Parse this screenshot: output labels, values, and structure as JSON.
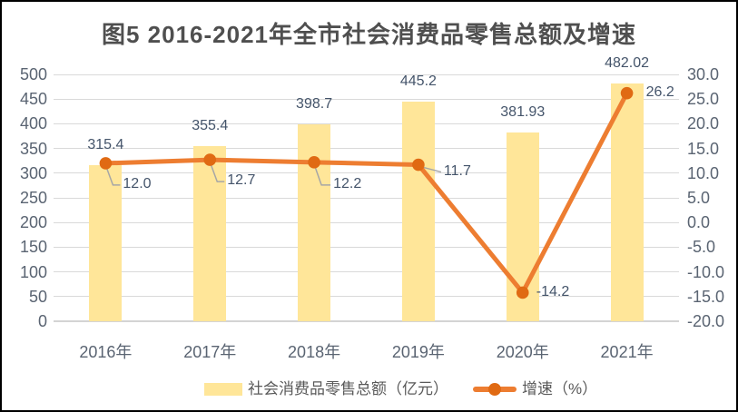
{
  "title": "图5 2016-2021年全市社会消费品零售总额及增速",
  "colors": {
    "bar_fill": "#FFE699",
    "line_stroke": "#ED7D31",
    "marker_fill": "#E06A13",
    "gridline": "#D9D9D9",
    "axis_text": "#5A6472",
    "data_label_text": "#44546A",
    "leader_line": "#A6A6A6",
    "title_text": "#4F4F4F"
  },
  "chart_data": {
    "type": "bar",
    "subtype": "bar-line-combo",
    "title": "图5 2016-2021年全市社会消费品零售总额及增速",
    "categories": [
      "2016年",
      "2017年",
      "2018年",
      "2019年",
      "2020年",
      "2021年"
    ],
    "series": [
      {
        "name": "社会消费品零售总额（亿元）",
        "type": "bar",
        "axis": "left",
        "values": [
          315.4,
          355.4,
          398.7,
          445.2,
          381.93,
          482.02
        ],
        "labels": [
          "315.4",
          "355.4",
          "398.7",
          "445.2",
          "381.93",
          "482.02"
        ]
      },
      {
        "name": "增速（%）",
        "type": "line",
        "axis": "right",
        "values": [
          12.0,
          12.7,
          12.2,
          11.7,
          -14.2,
          26.2
        ],
        "labels": [
          "12.0",
          "12.7",
          "12.2",
          "11.7",
          "-14.2",
          "26.2"
        ]
      }
    ],
    "left_axis": {
      "min": 0,
      "max": 500,
      "step": 50,
      "ticks": [
        "500",
        "450",
        "400",
        "350",
        "300",
        "250",
        "200",
        "150",
        "100",
        "50",
        "0"
      ]
    },
    "right_axis": {
      "min": -20,
      "max": 30,
      "step": 5,
      "ticks": [
        "30.0",
        "25.0",
        "20.0",
        "15.0",
        "10.0",
        "5.0",
        "0.0",
        "-5.0",
        "-10.0",
        "-15.0",
        "-20.0"
      ]
    },
    "grid": "horizontal",
    "legend_position": "bottom",
    "legend": [
      {
        "label": "社会消费品零售总额（亿元）",
        "swatch": "bar"
      },
      {
        "label": "增速（%）",
        "swatch": "line"
      }
    ]
  }
}
